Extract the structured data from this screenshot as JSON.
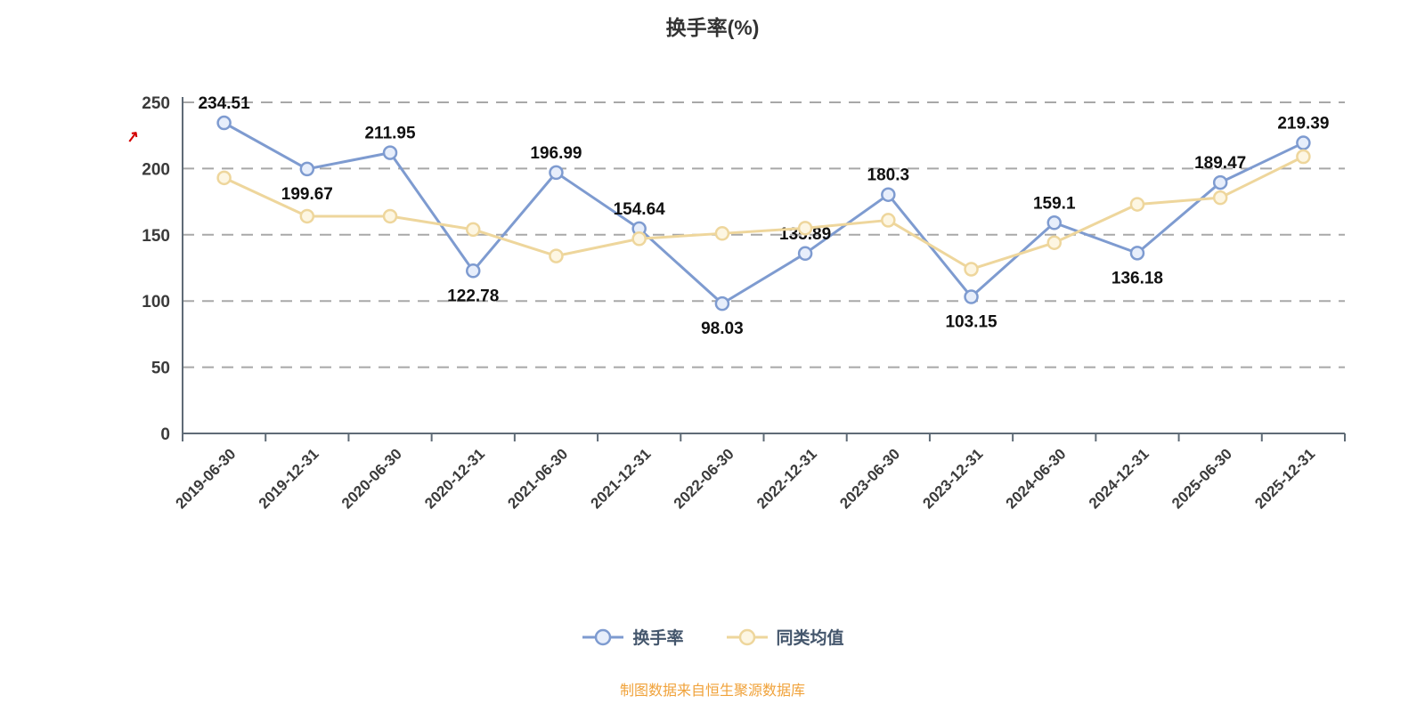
{
  "page": {
    "title": "换手率(%)",
    "footer": "制图数据来自恒生聚源数据库",
    "watermark": "↗"
  },
  "chart_data": {
    "type": "line",
    "title": "换手率(%)",
    "xlabel": "",
    "ylabel": "",
    "categories": [
      "2019-06-30",
      "2019-12-31",
      "2020-06-30",
      "2020-12-31",
      "2021-06-30",
      "2021-12-31",
      "2022-06-30",
      "2022-12-31",
      "2023-06-30",
      "2023-12-31",
      "2024-06-30",
      "2024-12-31",
      "2025-06-30",
      "2025-12-31"
    ],
    "series": [
      {
        "name": "换手率",
        "color": "#7e9bd0",
        "marker_fill": "#e7eefb",
        "data_labels": true,
        "values": [
          234.51,
          199.67,
          211.95,
          122.78,
          196.99,
          154.64,
          98.03,
          135.89,
          180.3,
          103.15,
          159.1,
          136.18,
          189.47,
          219.39
        ]
      },
      {
        "name": "同类均值",
        "color": "#eed69c",
        "marker_fill": "#fdf6e2",
        "data_labels": false,
        "values": [
          193,
          164,
          164,
          154,
          134,
          147,
          151,
          155,
          161,
          124,
          144,
          173,
          178,
          209
        ]
      }
    ],
    "ylim": [
      0,
      250
    ],
    "yticks": [
      0,
      50,
      100,
      150,
      200,
      250
    ],
    "grid": "horizontal-dashed",
    "legend_position": "bottom",
    "x_label_rotation": 45
  }
}
